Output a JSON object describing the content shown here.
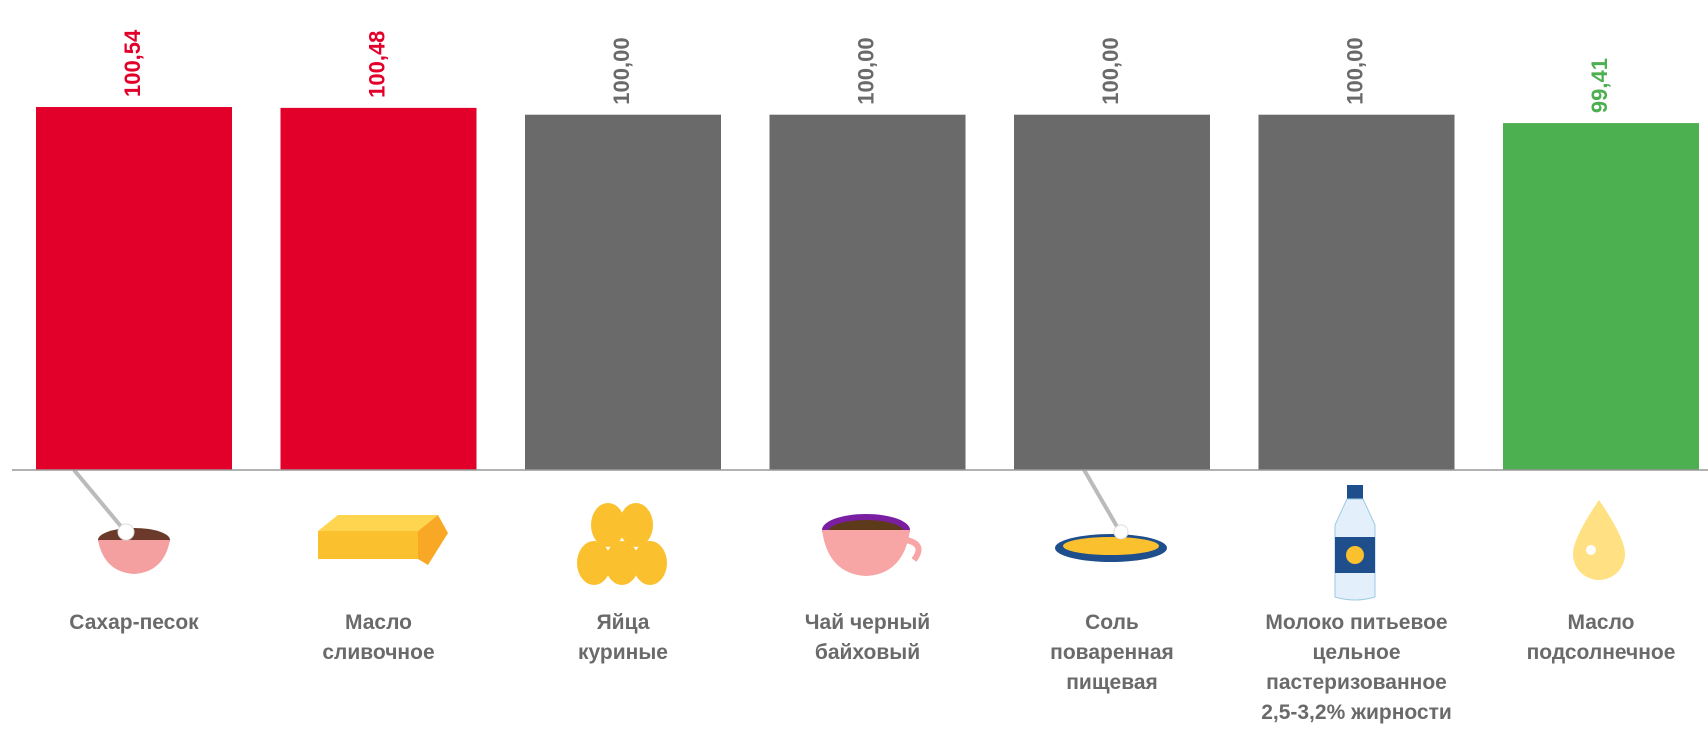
{
  "chart_data": {
    "type": "bar",
    "categories": [
      "Сахар-песок",
      "Масло\nсливочное",
      "Яйца\nкуриные",
      "Чай черный\nбайховый",
      "Соль\nповаренная\nпищевая",
      "Молоко питьевое\nцельное\nпастеризованное\n2,5-3,2% жирности",
      "Масло\nподсолнечное"
    ],
    "values": [
      100.54,
      100.48,
      100,
      100,
      100,
      100,
      99.41
    ],
    "value_labels": [
      "100,54",
      "100,48",
      "100,00",
      "100,00",
      "100,00",
      "100,00",
      "99,41"
    ],
    "colors": [
      "#e2002a",
      "#e2002a",
      "#6a6a6a",
      "#6a6a6a",
      "#6a6a6a",
      "#6a6a6a",
      "#4caf50"
    ],
    "ylim": [
      75,
      108
    ]
  }
}
